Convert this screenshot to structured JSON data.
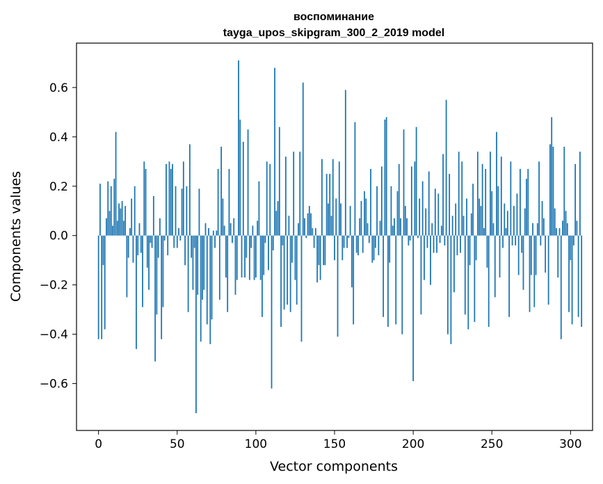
{
  "chart_data": {
    "type": "bar",
    "title": "воспоминание",
    "subtitle": "tayga_upos_skipgram_300_2_2019 model",
    "xlabel": "Vector components",
    "ylabel": "Components values",
    "xlim": [
      -14,
      314
    ],
    "ylim": [
      -0.79,
      0.78
    ],
    "xticks": [
      0,
      50,
      100,
      150,
      200,
      250,
      300
    ],
    "xtick_labels": [
      "0",
      "50",
      "100",
      "150",
      "200",
      "250",
      "300"
    ],
    "yticks": [
      -0.6,
      -0.4,
      -0.2,
      0.0,
      0.2,
      0.4,
      0.6
    ],
    "ytick_labels": [
      "−0.6",
      "−0.4",
      "−0.2",
      "0.0",
      "0.2",
      "0.4",
      "0.6"
    ],
    "bar_color": "#1f77b4",
    "values": [
      -0.42,
      0.21,
      -0.42,
      -0.12,
      -0.38,
      0.07,
      0.22,
      0.1,
      0.2,
      0.04,
      0.23,
      0.42,
      0.06,
      0.13,
      0.11,
      0.14,
      0.06,
      0.12,
      -0.25,
      -0.09,
      0.03,
      0.15,
      -0.11,
      0.2,
      -0.46,
      -0.08,
      0.05,
      -0.07,
      -0.29,
      0.3,
      0.27,
      -0.13,
      -0.22,
      -0.03,
      -0.05,
      0.16,
      -0.51,
      -0.32,
      -0.09,
      0.07,
      -0.42,
      -0.29,
      -0.02,
      0.29,
      -0.08,
      0.3,
      0.27,
      0.29,
      -0.05,
      0.2,
      -0.05,
      0.03,
      -0.02,
      0.19,
      0.3,
      -0.12,
      0.2,
      -0.31,
      0.37,
      -0.09,
      -0.22,
      -0.05,
      -0.72,
      -0.24,
      0.19,
      -0.43,
      -0.26,
      -0.22,
      0.05,
      -0.36,
      0.03,
      -0.44,
      -0.34,
      0.02,
      -0.05,
      0.02,
      0.27,
      -0.26,
      0.36,
      0.15,
      0.04,
      -0.17,
      -0.31,
      0.27,
      0.05,
      -0.03,
      0.07,
      -0.24,
      -0.18,
      0.71,
      0.47,
      -0.17,
      0.38,
      -0.17,
      -0.09,
      0.43,
      -0.18,
      -0.05,
      0.04,
      -0.18,
      -0.17,
      0.06,
      0.22,
      -0.18,
      -0.33,
      -0.16,
      -0.03,
      0.3,
      -0.14,
      0.29,
      -0.62,
      -0.06,
      0.68,
      0.1,
      0.14,
      0.44,
      -0.37,
      -0.04,
      -0.3,
      0.32,
      -0.28,
      0.08,
      -0.31,
      -0.11,
      0.34,
      -0.18,
      -0.28,
      0.05,
      0.34,
      -0.43,
      0.62,
      0.07,
      -0.01,
      0.09,
      0.12,
      0.09,
      0.03,
      -0.05,
      0.03,
      -0.19,
      -0.12,
      -0.18,
      0.31,
      -0.12,
      -0.12,
      0.25,
      0.13,
      0.25,
      0.08,
      0.31,
      -0.1,
      0.15,
      -0.41,
      0.3,
      0.13,
      -0.1,
      -0.05,
      0.59,
      -0.05,
      -0.01,
      0.12,
      -0.21,
      -0.36,
      0.46,
      -0.07,
      -0.08,
      0.07,
      0.14,
      -0.07,
      0.18,
      0.15,
      0.05,
      -0.03,
      0.27,
      -0.11,
      -0.1,
      -0.05,
      0.2,
      -0.08,
      0.06,
      0.28,
      -0.33,
      0.47,
      0.48,
      -0.37,
      -0.11,
      0.2,
      0.04,
      0.07,
      -0.36,
      0.18,
      0.29,
      0.07,
      -0.4,
      0.43,
      0.12,
      0.07,
      -0.04,
      -0.02,
      0.28,
      -0.59,
      0.3,
      0.44,
      -0.01,
      0.15,
      -0.32,
      0.22,
      -0.18,
      0.11,
      -0.05,
      0.26,
      -0.2,
      0.05,
      -0.07,
      0.19,
      -0.07,
      0.17,
      -0.03,
      0.04,
      0.33,
      -0.04,
      0.55,
      -0.4,
      0.25,
      -0.44,
      0.08,
      -0.23,
      0.13,
      -0.08,
      0.34,
      -0.07,
      0.3,
      0.08,
      -0.32,
      0.15,
      -0.38,
      -0.12,
      0.09,
      0.21,
      -0.35,
      -0.1,
      0.34,
      0.15,
      0.12,
      0.29,
      0.03,
      0.27,
      -0.13,
      -0.37,
      0.34,
      0.18,
      0.05,
      -0.25,
      0.42,
      0.2,
      -0.17,
      0.32,
      -0.05,
      0.13,
      0.03,
      0.1,
      -0.33,
      0.3,
      -0.04,
      0.12,
      -0.04,
      0.17,
      -0.16,
      0.27,
      -0.07,
      -0.22,
      0.11,
      0.23,
      0.27,
      -0.31,
      -0.16,
      0.05,
      -0.29,
      -0.16,
      0.05,
      0.3,
      -0.04,
      0.14,
      0.07,
      -0.15,
      0.0,
      -0.28,
      0.37,
      0.48,
      0.36,
      0.11,
      0.03,
      -0.17,
      0.03,
      -0.42,
      0.06,
      0.36,
      0.1,
      0.05,
      -0.31,
      -0.1,
      -0.36,
      -0.04,
      0.29,
      0.06,
      -0.33,
      0.34,
      -0.37
    ]
  }
}
